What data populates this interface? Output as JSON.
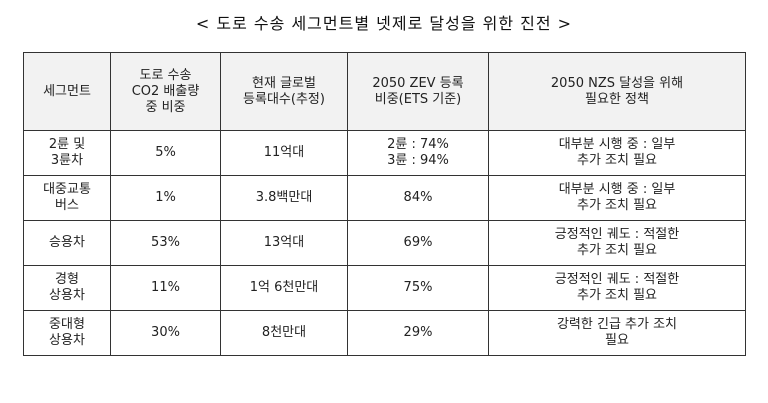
{
  "title": "< 도로 수송 세그먼트별 넷제로 달성을 위한 진전 >",
  "headers": [
    [
      "세그먼트"
    ],
    [
      "도로 수송",
      "CO2 배출량",
      "중 비중"
    ],
    [
      "현재 글로벌",
      "등록대수(추정)"
    ],
    [
      "2050 ZEV 등록",
      "비중(ETS 기준)"
    ],
    [
      "2050 NZS 달성을 위해",
      "필요한 정책"
    ]
  ],
  "rows": [
    {
      "segment": [
        "2륜 및",
        "3륜차"
      ],
      "share": "5%",
      "fleet": "11억대",
      "zev": [
        "2륜 : 74%",
        "3륜 : 94%"
      ],
      "policy": [
        "대부분 시행 중 : 일부",
        "추가 조치 필요"
      ]
    },
    {
      "segment": [
        "대중교통",
        "버스"
      ],
      "share": "1%",
      "fleet": "3.8백만대",
      "zev": [
        "84%"
      ],
      "policy": [
        "대부분 시행 중 : 일부",
        "추가 조치 필요"
      ]
    },
    {
      "segment": [
        "승용차"
      ],
      "share": "53%",
      "fleet": "13억대",
      "zev": [
        "69%"
      ],
      "policy": [
        "긍정적인 궤도 : 적절한",
        "추가 조치 필요"
      ]
    },
    {
      "segment": [
        "경형",
        "상용차"
      ],
      "share": "11%",
      "fleet": "1억 6천만대",
      "zev": [
        "75%"
      ],
      "policy": [
        "긍정적인 궤도 : 적절한",
        "추가 조치 필요"
      ]
    },
    {
      "segment": [
        "중대형",
        "상용차"
      ],
      "share": "30%",
      "fleet": "8천만대",
      "zev": [
        "29%"
      ],
      "policy": [
        "강력한 긴급 추가 조치",
        "필요"
      ]
    }
  ]
}
